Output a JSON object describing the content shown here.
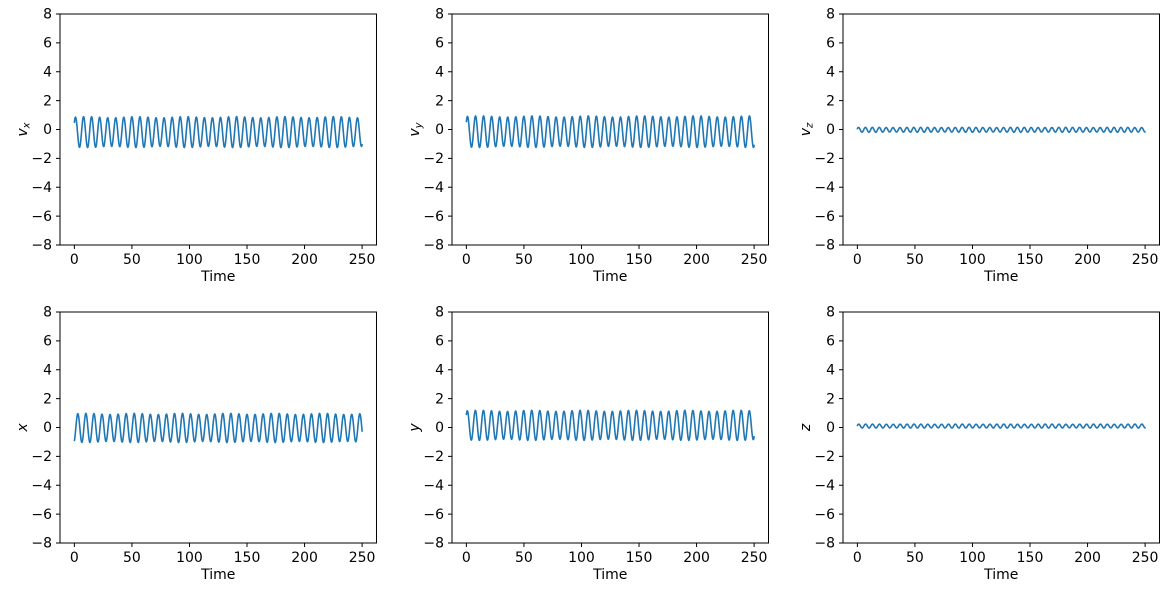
{
  "figure": {
    "background_color": "#ffffff",
    "axes_color": "#000000",
    "line_color": "#1f77b4",
    "rows": 2,
    "cols": 3
  },
  "chart_data": [
    {
      "type": "line",
      "id": "v_x",
      "ylabel_base": "v",
      "ylabel_sub": "x",
      "xlabel": "Time",
      "ylim": [
        -8,
        8
      ],
      "x_range": [
        0,
        250
      ],
      "x_ticks": [
        0,
        50,
        100,
        150,
        200,
        250
      ],
      "y_ticks": [
        -8,
        -6,
        -4,
        -2,
        0,
        2,
        4,
        6,
        8
      ],
      "grid": false,
      "legend": "none",
      "signal": {
        "shape": "sine",
        "mean": -0.18,
        "amplitude": 1.03,
        "period": 7.0,
        "phase_deg": 41,
        "amp_mod": 0.04,
        "amp_mod_period": 43,
        "t_start": 0,
        "t_end": 250,
        "dt": 0.25
      }
    },
    {
      "type": "line",
      "id": "v_y",
      "ylabel_base": "v",
      "ylabel_sub": "y",
      "xlabel": "Time",
      "ylim": [
        -8,
        8
      ],
      "x_range": [
        0,
        250
      ],
      "x_ticks": [
        0,
        50,
        100,
        150,
        200,
        250
      ],
      "y_ticks": [
        -8,
        -6,
        -4,
        -2,
        0,
        2,
        4,
        6,
        8
      ],
      "grid": false,
      "legend": "none",
      "signal": {
        "shape": "sine",
        "mean": -0.15,
        "amplitude": 1.05,
        "period": 7.0,
        "phase_deg": 42,
        "amp_mod": 0.04,
        "amp_mod_period": 47,
        "t_start": 0,
        "t_end": 250,
        "dt": 0.25
      }
    },
    {
      "type": "line",
      "id": "v_z",
      "ylabel_base": "v",
      "ylabel_sub": "z",
      "xlabel": "Time",
      "ylim": [
        -8,
        8
      ],
      "x_range": [
        0,
        250
      ],
      "x_ticks": [
        0,
        50,
        100,
        150,
        200,
        250
      ],
      "y_ticks": [
        -8,
        -6,
        -4,
        -2,
        0,
        2,
        4,
        6,
        8
      ],
      "grid": false,
      "legend": "none",
      "signal": {
        "shape": "sine",
        "mean": -0.02,
        "amplitude": 0.16,
        "period": 6.0,
        "phase_deg": 30,
        "amp_mod": 0.05,
        "amp_mod_period": 43,
        "t_start": 0,
        "t_end": 250,
        "dt": 0.25
      }
    },
    {
      "type": "line",
      "id": "x",
      "ylabel_base": "x",
      "ylabel_sub": "",
      "xlabel": "Time",
      "ylim": [
        -8,
        8
      ],
      "x_range": [
        0,
        250
      ],
      "x_ticks": [
        0,
        50,
        100,
        150,
        200,
        250
      ],
      "y_ticks": [
        -8,
        -6,
        -4,
        -2,
        0,
        2,
        4,
        6,
        8
      ],
      "grid": false,
      "legend": "none",
      "signal": {
        "shape": "sine",
        "mean": -0.03,
        "amplitude": 0.97,
        "period": 7.0,
        "phase_deg": -64,
        "amp_mod": 0.04,
        "amp_mod_period": 41,
        "t_start": 0,
        "t_end": 250,
        "dt": 0.25
      }
    },
    {
      "type": "line",
      "id": "y",
      "ylabel_base": "y",
      "ylabel_sub": "",
      "xlabel": "Time",
      "ylim": [
        -8,
        8
      ],
      "x_range": [
        0,
        250
      ],
      "x_ticks": [
        0,
        50,
        100,
        150,
        200,
        250
      ],
      "y_ticks": [
        -8,
        -6,
        -4,
        -2,
        0,
        2,
        4,
        6,
        8
      ],
      "grid": false,
      "legend": "none",
      "signal": {
        "shape": "sine",
        "mean": 0.15,
        "amplitude": 1.0,
        "period": 7.0,
        "phase_deg": 49,
        "amp_mod": 0.04,
        "amp_mod_period": 45,
        "t_start": 0,
        "t_end": 250,
        "dt": 0.25
      }
    },
    {
      "type": "line",
      "id": "z",
      "ylabel_base": "z",
      "ylabel_sub": "",
      "xlabel": "Time",
      "ylim": [
        -8,
        8
      ],
      "x_range": [
        0,
        250
      ],
      "x_ticks": [
        0,
        50,
        100,
        150,
        200,
        250
      ],
      "y_ticks": [
        -8,
        -6,
        -4,
        -2,
        0,
        2,
        4,
        6,
        8
      ],
      "grid": false,
      "legend": "none",
      "signal": {
        "shape": "sine",
        "mean": 0.1,
        "amplitude": 0.13,
        "period": 6.0,
        "phase_deg": 20,
        "amp_mod": 0.05,
        "amp_mod_period": 39,
        "t_start": 0,
        "t_end": 250,
        "dt": 0.25
      }
    }
  ]
}
